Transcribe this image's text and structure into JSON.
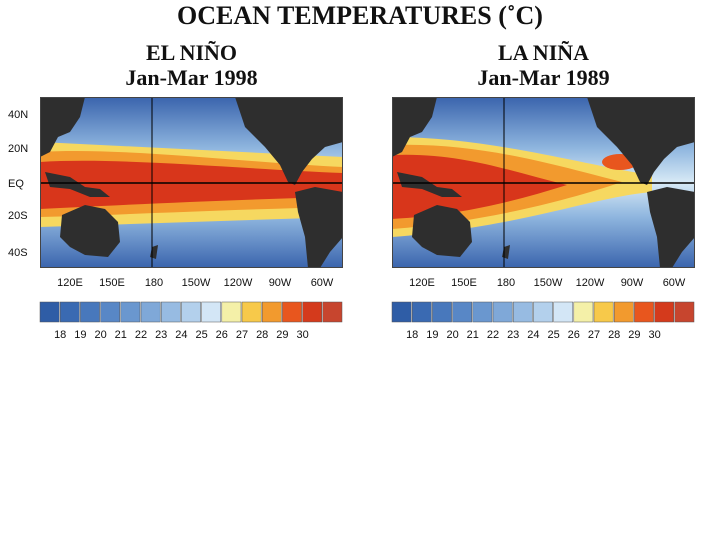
{
  "header": {
    "title": "OCEAN TEMPERATURES (˚C)"
  },
  "panels": [
    {
      "title": "EL NIÑO",
      "period": "Jan-Mar 1998",
      "pattern": "el-nino"
    },
    {
      "title": "LA NIÑA",
      "period": "Jan-Mar 1989",
      "pattern": "la-nina"
    }
  ],
  "lat_labels": [
    "40N",
    "20N",
    "EQ",
    "20S",
    "40S"
  ],
  "lon_labels": [
    "120E",
    "150E",
    "180",
    "150W",
    "120W",
    "90W",
    "60W"
  ],
  "colorbar": {
    "colors": [
      "#2f5da6",
      "#3a6ab2",
      "#4878bc",
      "#5887c6",
      "#6a97cf",
      "#7fa8d8",
      "#97bbe2",
      "#b3d0ec",
      "#d3e6f6",
      "#f4f0a8",
      "#f7c94a",
      "#f29a2e",
      "#e8561e",
      "#d43a1c",
      "#c7452e"
    ],
    "labels": [
      "18",
      "19",
      "20",
      "21",
      "22",
      "23",
      "24",
      "25",
      "26",
      "27",
      "28",
      "29",
      "30"
    ]
  }
}
